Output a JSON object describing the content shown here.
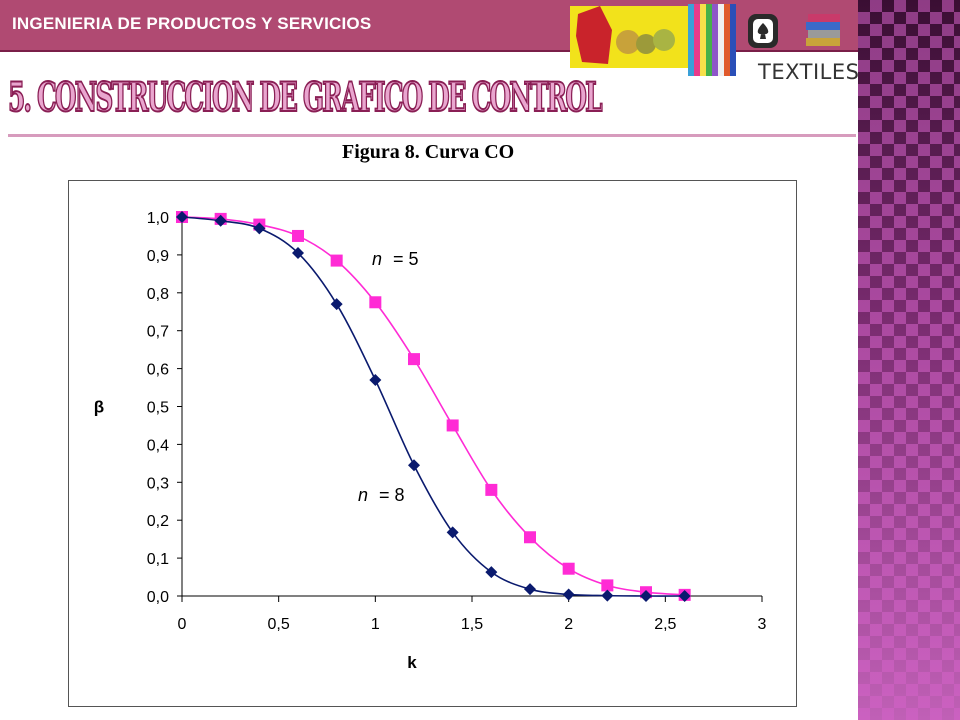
{
  "header": {
    "title": "INGENIERIA DE PRODUCTOS Y SERVICIOS",
    "logo_text": "TEXTILES",
    "logo_icon": "spade-icon",
    "colors": {
      "bar": "#b04a72",
      "accent": "#7a1f48"
    }
  },
  "slide": {
    "title": "5. CONSTRUCCION DE GRAFICO DE CONTROL",
    "figure_caption": "Figura 8. Curva CO"
  },
  "chart_data": {
    "type": "line",
    "xlabel": "k",
    "ylabel": "β",
    "xlim": [
      0,
      3
    ],
    "ylim": [
      0,
      1
    ],
    "x_ticks": [
      "0",
      "0,5",
      "1",
      "1,5",
      "2",
      "2,5",
      "3"
    ],
    "y_ticks": [
      "0,0",
      "0,1",
      "0,2",
      "0,3",
      "0,4",
      "0,5",
      "0,6",
      "0,7",
      "0,8",
      "0,9",
      "1,0"
    ],
    "grid": false,
    "series": [
      {
        "name": "n = 5",
        "n_label": "n",
        "value_label": "= 5",
        "color": "#ff2bd5",
        "marker": "square",
        "x": [
          0,
          0.2,
          0.4,
          0.6,
          0.8,
          1.0,
          1.2,
          1.4,
          1.6,
          1.8,
          2.0,
          2.2,
          2.4,
          2.6
        ],
        "y": [
          1.0,
          0.995,
          0.98,
          0.95,
          0.885,
          0.775,
          0.625,
          0.45,
          0.28,
          0.155,
          0.072,
          0.028,
          0.01,
          0.003
        ]
      },
      {
        "name": "n = 8",
        "n_label": "n",
        "value_label": "= 8",
        "color": "#0a1a6e",
        "marker": "diamond",
        "x": [
          0,
          0.2,
          0.4,
          0.6,
          0.8,
          1.0,
          1.2,
          1.4,
          1.6,
          1.8,
          2.0,
          2.2,
          2.4,
          2.6
        ],
        "y": [
          1.0,
          0.99,
          0.97,
          0.905,
          0.77,
          0.57,
          0.345,
          0.168,
          0.063,
          0.018,
          0.004,
          0.001,
          0.0,
          0.0
        ]
      }
    ]
  }
}
